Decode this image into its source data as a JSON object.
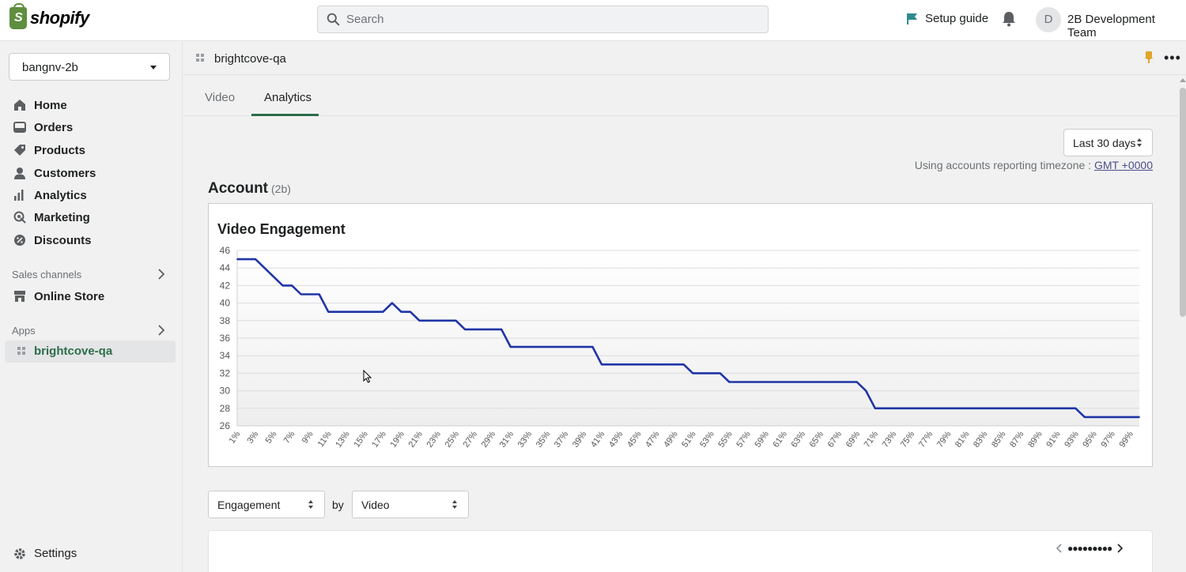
{
  "brand": {
    "name": "shopify"
  },
  "search": {
    "placeholder": "Search"
  },
  "header": {
    "setup_guide": "Setup guide",
    "avatar_initial": "D",
    "team_name": "2B Development Team"
  },
  "sidebar": {
    "store_name": "bangnv-2b",
    "items": [
      {
        "label": "Home",
        "icon": "home-icon"
      },
      {
        "label": "Orders",
        "icon": "orders-icon"
      },
      {
        "label": "Products",
        "icon": "tag-icon"
      },
      {
        "label": "Customers",
        "icon": "person-icon"
      },
      {
        "label": "Analytics",
        "icon": "bar-chart-icon"
      },
      {
        "label": "Marketing",
        "icon": "marketing-icon"
      },
      {
        "label": "Discounts",
        "icon": "discount-icon"
      }
    ],
    "sales_channels_label": "Sales channels",
    "online_store": "Online Store",
    "apps_label": "Apps",
    "app_item": "brightcove-qa",
    "settings": "Settings"
  },
  "page": {
    "app_title": "brightcove-qa",
    "tabs": [
      {
        "label": "Video",
        "active": false
      },
      {
        "label": "Analytics",
        "active": true
      }
    ],
    "date_range": "Last 30 days",
    "timezone_text": "Using accounts reporting timezone :",
    "timezone_link": "GMT +0000",
    "account_title": "Account",
    "account_sub": "(2b)",
    "metric_select": "Engagement",
    "by_label": "by",
    "dimension_select": "Video"
  },
  "chart_data": {
    "type": "line",
    "title": "Video Engagement",
    "x": [
      "1%",
      "2%",
      "3%",
      "4%",
      "5%",
      "6%",
      "7%",
      "8%",
      "9%",
      "10%",
      "11%",
      "12%",
      "13%",
      "14%",
      "15%",
      "16%",
      "17%",
      "18%",
      "19%",
      "20%",
      "21%",
      "22%",
      "23%",
      "24%",
      "25%",
      "26%",
      "27%",
      "28%",
      "29%",
      "30%",
      "31%",
      "32%",
      "33%",
      "34%",
      "35%",
      "36%",
      "37%",
      "38%",
      "39%",
      "40%",
      "41%",
      "42%",
      "43%",
      "44%",
      "45%",
      "46%",
      "47%",
      "48%",
      "49%",
      "50%",
      "51%",
      "52%",
      "53%",
      "54%",
      "55%",
      "56%",
      "57%",
      "58%",
      "59%",
      "60%",
      "61%",
      "62%",
      "63%",
      "64%",
      "65%",
      "66%",
      "67%",
      "68%",
      "69%",
      "70%",
      "71%",
      "72%",
      "73%",
      "74%",
      "75%",
      "76%",
      "77%",
      "78%",
      "79%",
      "80%",
      "81%",
      "82%",
      "83%",
      "84%",
      "85%",
      "86%",
      "87%",
      "88%",
      "89%",
      "90%",
      "91%",
      "92%",
      "93%",
      "94%",
      "95%",
      "96%",
      "97%",
      "98%",
      "99%",
      "100%"
    ],
    "x_tick_labels": [
      "1%",
      "3%",
      "5%",
      "7%",
      "9%",
      "11%",
      "13%",
      "15%",
      "17%",
      "19%",
      "21%",
      "23%",
      "25%",
      "27%",
      "29%",
      "31%",
      "33%",
      "35%",
      "37%",
      "39%",
      "41%",
      "43%",
      "45%",
      "47%",
      "49%",
      "51%",
      "53%",
      "55%",
      "57%",
      "59%",
      "61%",
      "63%",
      "65%",
      "67%",
      "69%",
      "71%",
      "73%",
      "75%",
      "77%",
      "79%",
      "81%",
      "83%",
      "85%",
      "87%",
      "89%",
      "91%",
      "93%",
      "95%",
      "97%",
      "99%"
    ],
    "values": [
      45,
      45,
      45,
      44,
      43,
      42,
      42,
      41,
      41,
      41,
      39,
      39,
      39,
      39,
      39,
      39,
      39,
      40,
      39,
      39,
      38,
      38,
      38,
      38,
      38,
      37,
      37,
      37,
      37,
      37,
      35,
      35,
      35,
      35,
      35,
      35,
      35,
      35,
      35,
      35,
      33,
      33,
      33,
      33,
      33,
      33,
      33,
      33,
      33,
      33,
      32,
      32,
      32,
      32,
      31,
      31,
      31,
      31,
      31,
      31,
      31,
      31,
      31,
      31,
      31,
      31,
      31,
      31,
      31,
      30,
      28,
      28,
      28,
      28,
      28,
      28,
      28,
      28,
      28,
      28,
      28,
      28,
      28,
      28,
      28,
      28,
      28,
      28,
      28,
      28,
      28,
      28,
      28,
      27,
      27,
      27,
      27,
      27,
      27,
      27
    ],
    "ylim": [
      26,
      46
    ],
    "y_ticks": [
      26,
      28,
      30,
      32,
      34,
      36,
      38,
      40,
      42,
      44,
      46
    ],
    "line_color": "#1f35a6",
    "grid": true
  },
  "colors": {
    "accent": "#2c6e49",
    "brand": "#5e8e3e"
  }
}
